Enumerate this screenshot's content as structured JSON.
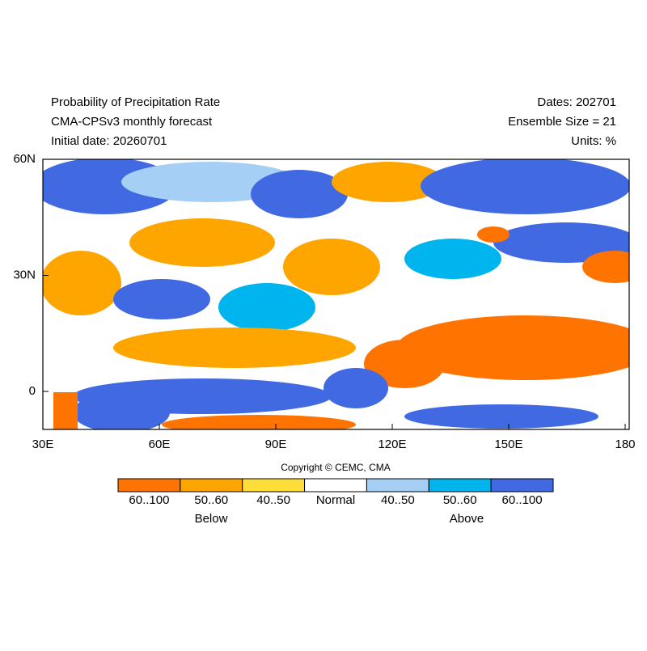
{
  "header": {
    "title": "Probability of Precipitation Rate",
    "subtitle": "CMA-CPSv3 monthly forecast",
    "initial_date": "Initial date: 20260701",
    "dates": "Dates: 202701",
    "ensemble": "Ensemble Size = 21",
    "units": "Units: %"
  },
  "map": {
    "x_labels": [
      "30E",
      "60E",
      "90E",
      "120E",
      "150E",
      "180"
    ],
    "y_labels": [
      "60N",
      "30N",
      "0"
    ]
  },
  "copyright": "Copyright © CEMC, CMA",
  "legend": {
    "bins": [
      {
        "label": "60..100",
        "color": "#ff7300"
      },
      {
        "label": "50..60",
        "color": "#ffa500"
      },
      {
        "label": "40..50",
        "color": "#ffde3c"
      },
      {
        "label": "Normal",
        "color": "#ffffff"
      },
      {
        "label": "40..50",
        "color": "#a6cff6"
      },
      {
        "label": "50..60",
        "color": "#00b5ee"
      },
      {
        "label": "60..100",
        "color": "#4169e1"
      }
    ],
    "groups": [
      "Below",
      "Above"
    ]
  }
}
